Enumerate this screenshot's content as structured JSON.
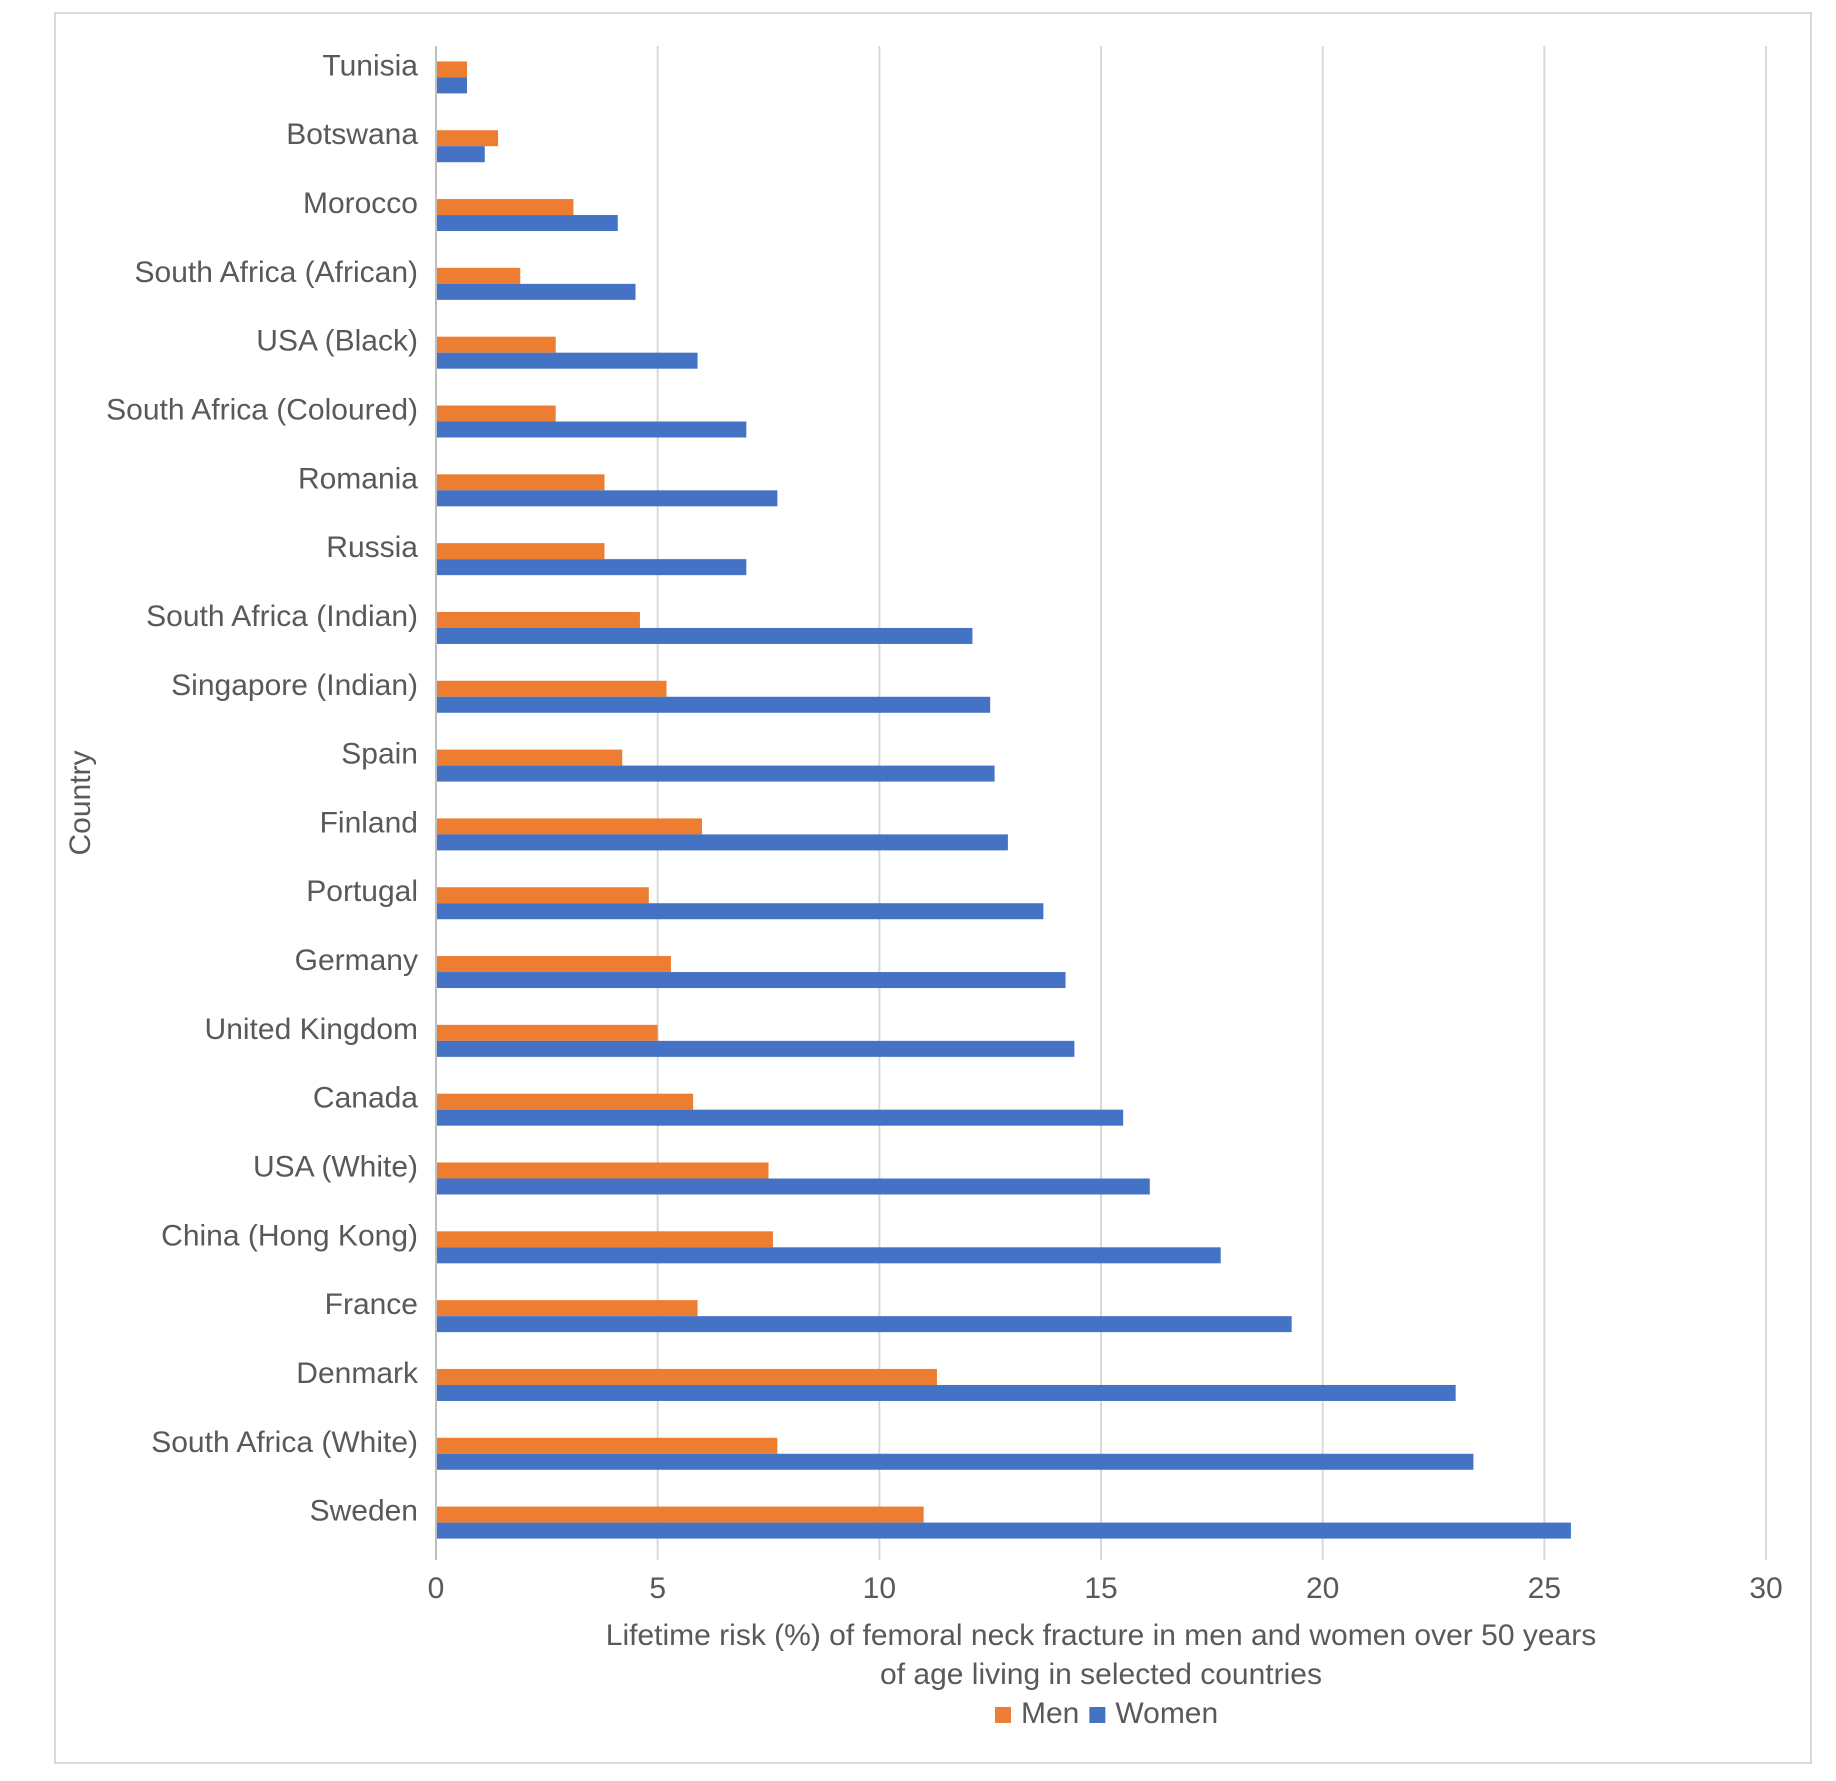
{
  "chart_data": {
    "type": "bar",
    "orientation": "horizontal",
    "categories": [
      "Tunisia",
      "Botswana",
      "Morocco",
      "South Africa (African)",
      "USA (Black)",
      "South Africa (Coloured)",
      "Romania",
      "Russia",
      "South Africa (Indian)",
      "Singapore (Indian)",
      "Spain",
      "Finland",
      "Portugal",
      "Germany",
      "United Kingdom",
      "Canada",
      "USA (White)",
      "China (Hong Kong)",
      "France",
      "Denmark",
      "South Africa (White)",
      "Sweden"
    ],
    "series": [
      {
        "name": "Men",
        "color": "#ed7d31",
        "values": [
          0.7,
          1.4,
          3.1,
          1.9,
          2.7,
          2.7,
          3.8,
          3.8,
          4.6,
          5.2,
          4.2,
          6.0,
          4.8,
          5.3,
          5.0,
          5.8,
          7.5,
          7.6,
          5.9,
          11.3,
          7.7,
          11.0
        ]
      },
      {
        "name": "Women",
        "color": "#4472c4",
        "values": [
          0.7,
          1.1,
          4.1,
          4.5,
          5.9,
          7.0,
          7.7,
          7.0,
          12.1,
          12.5,
          12.6,
          12.9,
          13.7,
          14.2,
          14.4,
          15.5,
          16.1,
          17.7,
          19.3,
          23.0,
          23.4,
          25.6
        ]
      }
    ],
    "xlim": [
      0,
      30
    ],
    "xticks": [
      "0",
      "5",
      "10",
      "15",
      "20",
      "25",
      "30"
    ],
    "xlabel_line1": "Lifetime risk (%) of femoral neck fracture in men and women over 50 years",
    "xlabel_line2": "of age living in selected countries",
    "ylabel": "Country",
    "grid": "vertical",
    "legend_position": "bottom"
  }
}
